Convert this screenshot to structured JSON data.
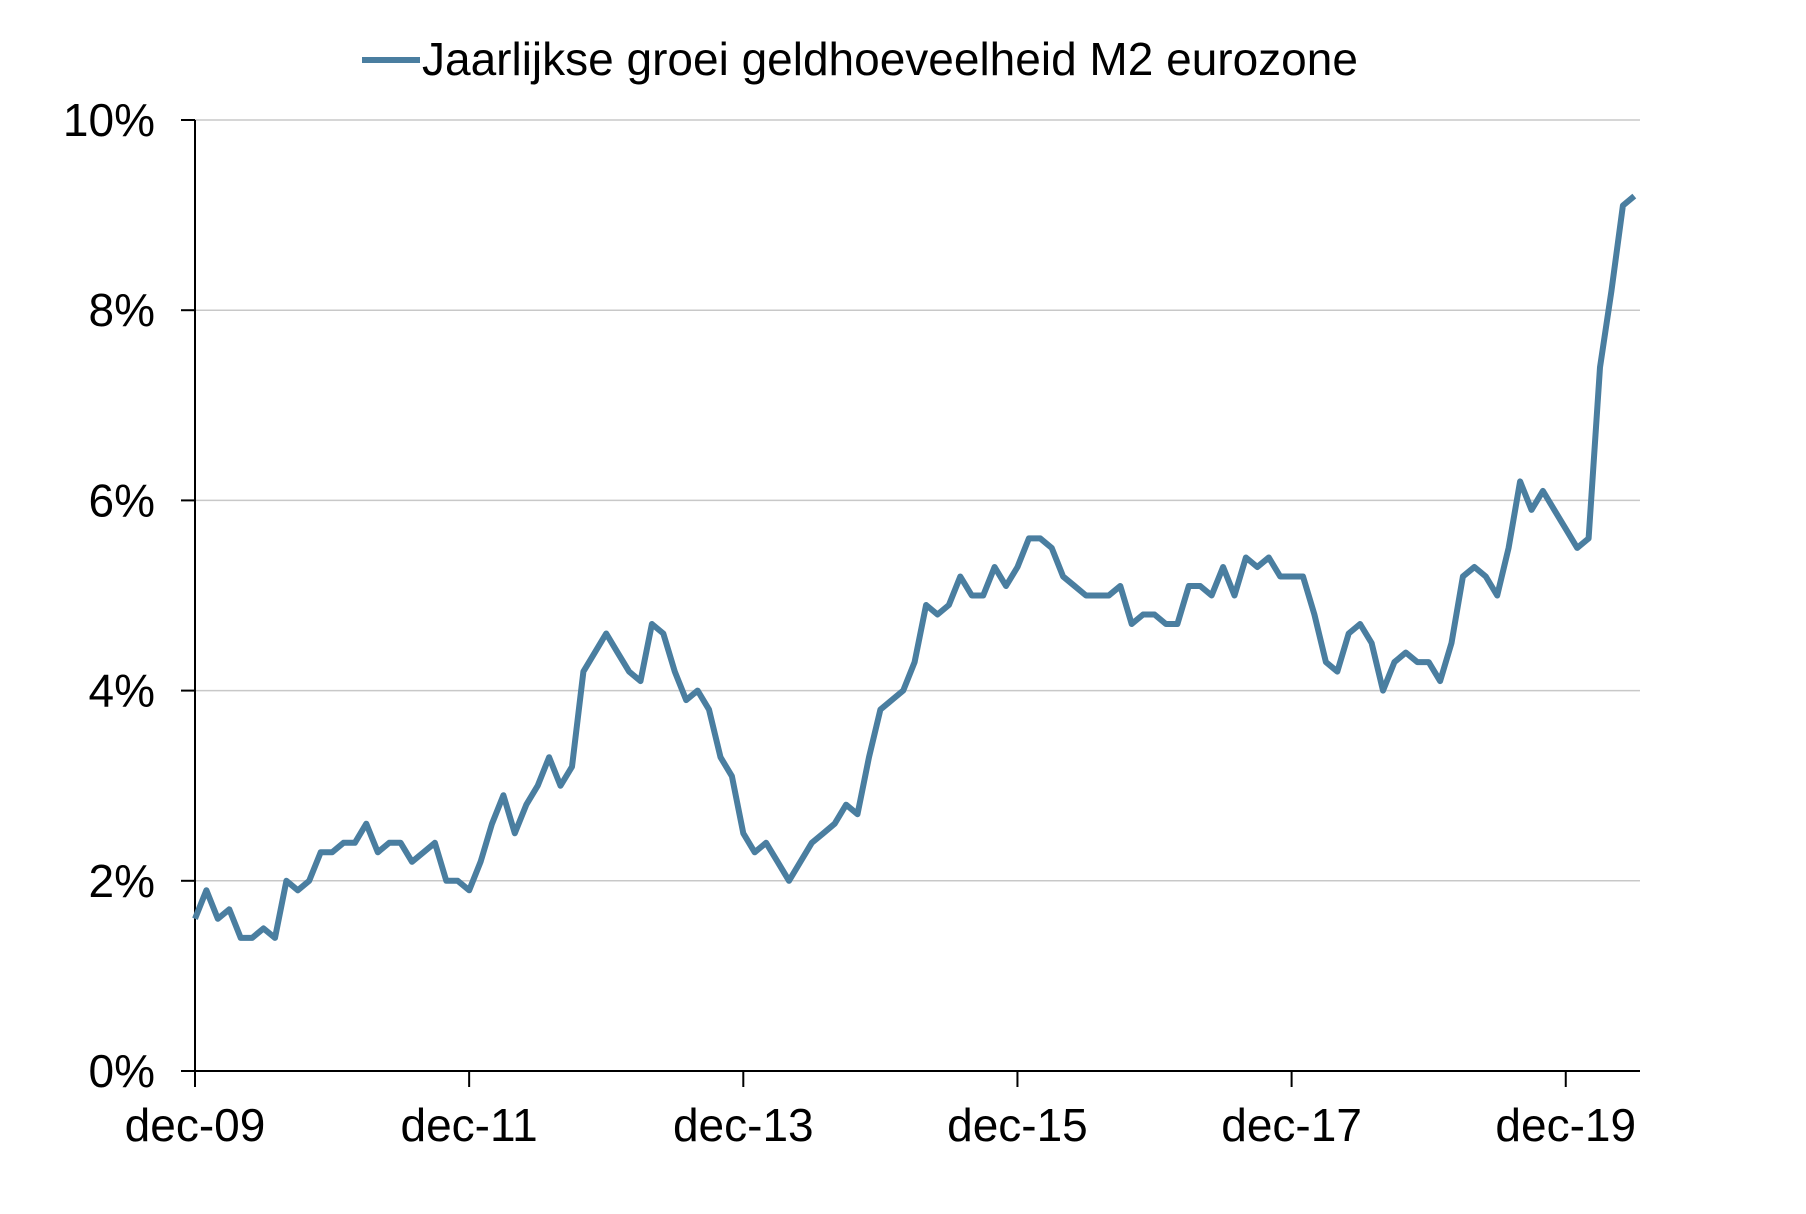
{
  "chart_data": {
    "type": "line",
    "title": "",
    "xlabel": "",
    "ylabel": "",
    "ylim": [
      0,
      10
    ],
    "grid": "horizontal",
    "legend": "top-center",
    "y_ticks": [
      "0%",
      "2%",
      "4%",
      "6%",
      "8%",
      "10%"
    ],
    "x_ticks": [
      "dec-09",
      "dec-11",
      "dec-13",
      "dec-15",
      "dec-17",
      "dec-19"
    ],
    "x_start": "dec-09",
    "x_end": "jun-20",
    "series": [
      {
        "name": "Jaarlijkse groei geldhoeveelheid M2 eurozone",
        "color": "#4a7ea0",
        "values": [
          1.6,
          1.9,
          1.6,
          1.7,
          1.4,
          1.4,
          1.5,
          1.4,
          2.0,
          1.9,
          2.0,
          2.3,
          2.3,
          2.4,
          2.4,
          2.6,
          2.3,
          2.4,
          2.4,
          2.2,
          2.3,
          2.4,
          2.0,
          2.0,
          1.9,
          2.2,
          2.6,
          2.9,
          2.5,
          2.8,
          3.0,
          3.3,
          3.0,
          3.2,
          4.2,
          4.4,
          4.6,
          4.4,
          4.2,
          4.1,
          4.7,
          4.6,
          4.2,
          3.9,
          4.0,
          3.8,
          3.3,
          3.1,
          2.5,
          2.3,
          2.4,
          2.2,
          2.0,
          2.2,
          2.4,
          2.5,
          2.6,
          2.8,
          2.7,
          3.3,
          3.8,
          3.9,
          4.0,
          4.3,
          4.9,
          4.8,
          4.9,
          5.2,
          5.0,
          5.0,
          5.3,
          5.1,
          5.3,
          5.6,
          5.6,
          5.5,
          5.2,
          5.1,
          5.0,
          5.0,
          5.0,
          5.1,
          4.7,
          4.8,
          4.8,
          4.7,
          4.7,
          5.1,
          5.1,
          5.0,
          5.3,
          5.0,
          5.4,
          5.3,
          5.4,
          5.2,
          5.2,
          5.2,
          4.8,
          4.3,
          4.2,
          4.6,
          4.7,
          4.5,
          4.0,
          4.3,
          4.4,
          4.3,
          4.3,
          4.1,
          4.5,
          5.2,
          5.3,
          5.2,
          5.0,
          5.5,
          6.2,
          5.9,
          6.1,
          5.9,
          5.7,
          5.5,
          5.6,
          7.4,
          8.2,
          9.1,
          9.2
        ]
      }
    ]
  }
}
